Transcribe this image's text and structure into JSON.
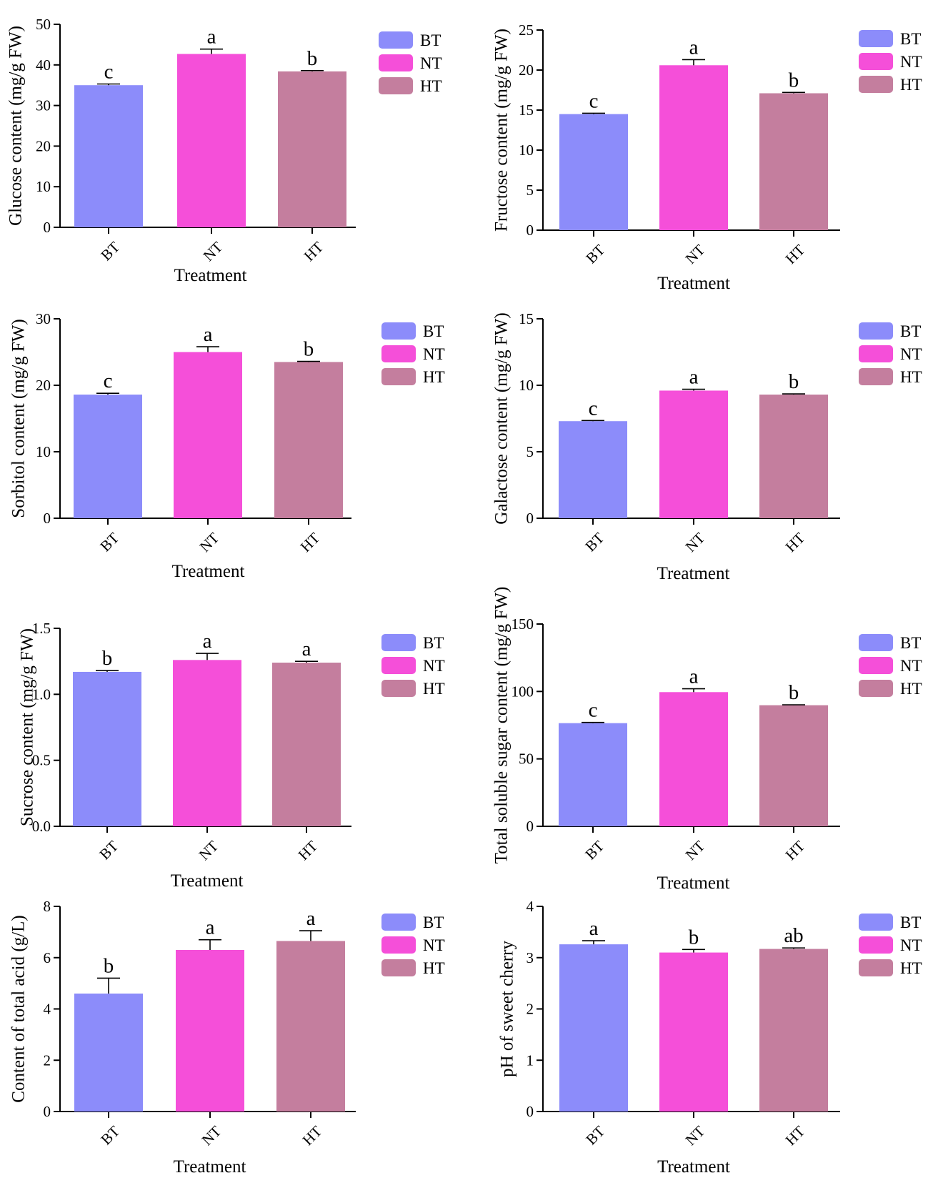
{
  "legend": [
    {
      "label": "BT",
      "color": "#8c8cfa"
    },
    {
      "label": "NT",
      "color": "#f54fd9"
    },
    {
      "label": "HT",
      "color": "#c47e9e"
    }
  ],
  "chart_data": [
    {
      "type": "bar",
      "title": "",
      "xlabel": "Treatment",
      "ylabel": "Glucose content (mg/g FW)",
      "categories": [
        "BT",
        "NT",
        "HT"
      ],
      "values": [
        35.0,
        42.7,
        38.4
      ],
      "errors": [
        0.3,
        1.2,
        0.2
      ],
      "significance": [
        "c",
        "a",
        "b"
      ],
      "ylim": [
        0,
        50
      ],
      "yticks": [
        "0",
        "10",
        "20",
        "30",
        "40",
        "50"
      ]
    },
    {
      "type": "bar",
      "title": "",
      "xlabel": "Treatment",
      "ylabel": "Fructose content (mg/g FW)",
      "categories": [
        "BT",
        "NT",
        "HT"
      ],
      "values": [
        14.5,
        20.6,
        17.1
      ],
      "errors": [
        0.1,
        0.7,
        0.1
      ],
      "significance": [
        "c",
        "a",
        "b"
      ],
      "ylim": [
        0,
        25
      ],
      "yticks": [
        "0",
        "5",
        "10",
        "15",
        "20",
        "25"
      ]
    },
    {
      "type": "bar",
      "title": "",
      "xlabel": "Treatment",
      "ylabel": "Sorbitol content (mg/g FW)",
      "categories": [
        "BT",
        "NT",
        "HT"
      ],
      "values": [
        18.6,
        25.0,
        23.5
      ],
      "errors": [
        0.2,
        0.8,
        0.1
      ],
      "significance": [
        "c",
        "a",
        "b"
      ],
      "ylim": [
        0,
        30
      ],
      "yticks": [
        "0",
        "10",
        "20",
        "30"
      ]
    },
    {
      "type": "bar",
      "title": "",
      "xlabel": "Treatment",
      "ylabel": "Galactose content (mg/g FW)",
      "categories": [
        "BT",
        "NT",
        "HT"
      ],
      "values": [
        7.3,
        9.6,
        9.3
      ],
      "errors": [
        0.05,
        0.1,
        0.05
      ],
      "significance": [
        "c",
        "a",
        "b"
      ],
      "ylim": [
        0,
        15
      ],
      "yticks": [
        "0",
        "5",
        "10",
        "15"
      ]
    },
    {
      "type": "bar",
      "title": "",
      "xlabel": "Treatment",
      "ylabel": "Sucrose content (mg/g FW)",
      "categories": [
        "BT",
        "NT",
        "HT"
      ],
      "values": [
        1.17,
        1.26,
        1.24
      ],
      "errors": [
        0.01,
        0.05,
        0.01
      ],
      "significance": [
        "b",
        "a",
        "a"
      ],
      "ylim": [
        0,
        1.5
      ],
      "yticks": [
        "0.0",
        "0.5",
        "1.0",
        "1.5"
      ]
    },
    {
      "type": "bar",
      "title": "",
      "xlabel": "Treatment",
      "ylabel": "Total soluble sugar content (mg/g FW)",
      "categories": [
        "BT",
        "NT",
        "HT"
      ],
      "values": [
        76.5,
        99.5,
        89.8
      ],
      "errors": [
        0.5,
        2.5,
        0.3
      ],
      "significance": [
        "c",
        "a",
        "b"
      ],
      "ylim": [
        0,
        150
      ],
      "yticks": [
        "0",
        "50",
        "100",
        "150"
      ]
    },
    {
      "type": "bar",
      "title": "",
      "xlabel": "Treatment",
      "ylabel": "Content of total acid (g/L)",
      "categories": [
        "BT",
        "NT",
        "HT"
      ],
      "values": [
        4.6,
        6.3,
        6.65
      ],
      "errors": [
        0.6,
        0.4,
        0.4
      ],
      "significance": [
        "b",
        "a",
        "a"
      ],
      "ylim": [
        0,
        8
      ],
      "yticks": [
        "0",
        "2",
        "4",
        "6",
        "8"
      ]
    },
    {
      "type": "bar",
      "title": "",
      "xlabel": "Treatment",
      "ylabel": "pH of sweet cherry",
      "categories": [
        "BT",
        "NT",
        "HT"
      ],
      "values": [
        3.26,
        3.1,
        3.17
      ],
      "errors": [
        0.07,
        0.06,
        0.02
      ],
      "significance": [
        "a",
        "b",
        "ab"
      ],
      "ylim": [
        0,
        4
      ],
      "yticks": [
        "0",
        "1",
        "2",
        "3",
        "4"
      ]
    }
  ]
}
